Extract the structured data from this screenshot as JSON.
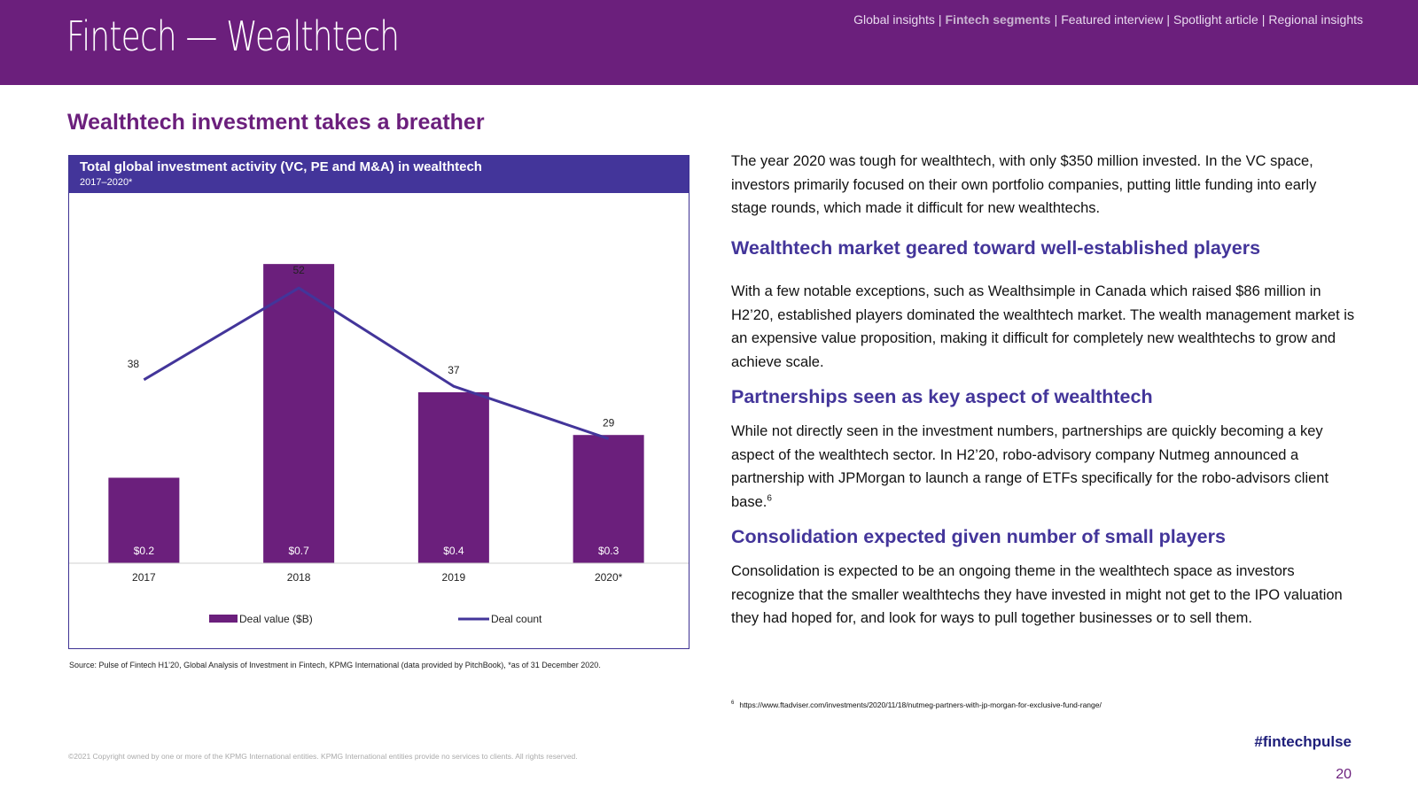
{
  "header": {
    "title": "Fintech — Wealthtech",
    "nav": [
      {
        "label": "Global insights",
        "active": false
      },
      {
        "label": "Fintech segments",
        "active": true
      },
      {
        "label": "Featured interview",
        "active": false
      },
      {
        "label": "Spotlight article",
        "active": false
      },
      {
        "label": "Regional insights",
        "active": false
      }
    ],
    "separator": "|"
  },
  "section_title": "Wealthtech investment takes a breather",
  "chart_panel": {
    "title": "Total global investment activity (VC, PE and M&A) in wealthtech",
    "subtitle": "2017–2020*"
  },
  "chart_data": {
    "type": "bar",
    "categories": [
      "2017",
      "2018",
      "2019",
      "2020*"
    ],
    "series": [
      {
        "name": "Deal value ($B)",
        "type": "bar",
        "values": [
          0.2,
          0.7,
          0.4,
          0.3
        ],
        "labels": [
          "$0.2",
          "$0.7",
          "$0.4",
          "$0.3"
        ],
        "color": "#6b1f7c"
      },
      {
        "name": "Deal count",
        "type": "line",
        "values": [
          38,
          52,
          37,
          29
        ],
        "labels": [
          "38",
          "52",
          "37",
          "29"
        ],
        "color": "#43359a"
      }
    ],
    "legend_position": "bottom",
    "grid": false
  },
  "source_note": "Source: Pulse of Fintech H1’20, Global Analysis of Investment in Fintech, KPMG International (data provided by PitchBook), *as of 31 December 2020.",
  "body": {
    "intro": "The year 2020 was tough for wealthtech, with only $350 million invested. In the VC space, investors primarily focused on their own portfolio companies, putting little funding into early stage rounds, which made it difficult for new wealthtechs.",
    "sections": [
      {
        "heading": "Wealthtech market geared toward well-established players",
        "text": "With a few notable exceptions, such as Wealthsimple in Canada which raised $86 million in H2’20, established players dominated the wealthtech market. The wealth management market is an expensive value proposition, making it difficult for completely new wealthtechs to grow and achieve scale."
      },
      {
        "heading": "Partnerships seen as key aspect of wealthtech",
        "text": "While not directly seen in the investment numbers, partnerships are quickly becoming a key aspect of the wealthtech sector. In H2’20, robo-advisory company Nutmeg announced a partnership with JPMorgan to launch a range of ETFs specifically for the robo-advisors client base.",
        "footnote_ref": "6"
      },
      {
        "heading": "Consolidation expected given number of small players",
        "text": "Consolidation is expected to be an ongoing theme in the wealthtech space as investors recognize that the smaller wealthtechs they have invested in might not get to the IPO valuation they had hoped for, and look for ways to pull together businesses or to sell them."
      }
    ]
  },
  "footnote": {
    "number": "6",
    "url": "https://www.ftadviser.com/investments/2020/11/18/nutmeg-partners-with-jp-morgan-for-exclusive-fund-range/"
  },
  "footer": {
    "copyright": "©2021 Copyright owned by one or more of the KPMG International entities. KPMG International entities provide no services to clients. All rights reserved.",
    "hashtag": "#fintechpulse",
    "page_number": "20"
  }
}
